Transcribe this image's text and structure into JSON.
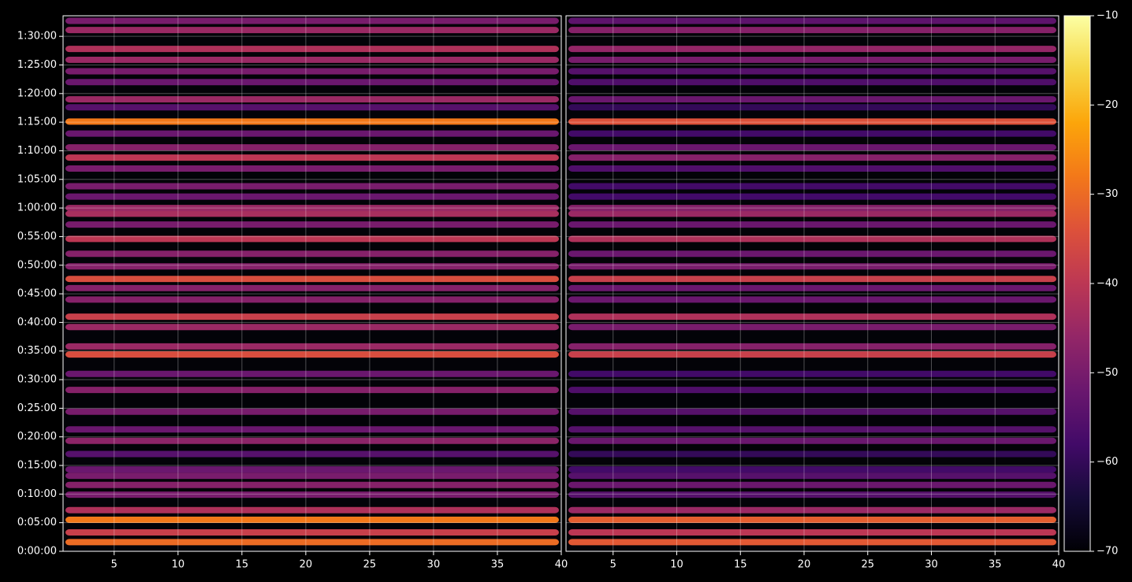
{
  "chart_data": {
    "type": "heatmap",
    "ylim": [
      0,
      93.6
    ],
    "yticks": [
      {
        "value": 0,
        "label": "0:00:00"
      },
      {
        "value": 5,
        "label": "0:05:00"
      },
      {
        "value": 10,
        "label": "0:10:00"
      },
      {
        "value": 15,
        "label": "0:15:00"
      },
      {
        "value": 20,
        "label": "0:20:00"
      },
      {
        "value": 25,
        "label": "0:25:00"
      },
      {
        "value": 30,
        "label": "0:30:00"
      },
      {
        "value": 35,
        "label": "0:35:00"
      },
      {
        "value": 40,
        "label": "0:40:00"
      },
      {
        "value": 45,
        "label": "0:45:00"
      },
      {
        "value": 50,
        "label": "0:50:00"
      },
      {
        "value": 55,
        "label": "0:55:00"
      },
      {
        "value": 60,
        "label": "1:00:00"
      },
      {
        "value": 65,
        "label": "1:05:00"
      },
      {
        "value": 70,
        "label": "1:10:00"
      },
      {
        "value": 75,
        "label": "1:15:00"
      },
      {
        "value": 80,
        "label": "1:20:00"
      },
      {
        "value": 85,
        "label": "1:25:00"
      },
      {
        "value": 90,
        "label": "1:30:00"
      }
    ],
    "y": [
      1.6,
      3.3,
      5.5,
      7.2,
      9.9,
      11.6,
      13.2,
      14.3,
      17,
      19.3,
      21.3,
      24.4,
      28.2,
      31,
      34.4,
      35.8,
      39.2,
      41,
      44,
      46,
      47.6,
      49.8,
      52,
      54.6,
      57.1,
      59,
      60,
      62,
      63.8,
      66.9,
      68.8,
      70.6,
      73,
      75.1,
      77.6,
      79,
      82,
      83.9,
      85.9,
      87.8,
      91.1,
      92.7
    ],
    "panels": [
      {
        "xlim": [
          1,
          40
        ],
        "xticks": [
          5,
          10,
          15,
          20,
          25,
          30,
          35,
          40
        ],
        "values": [
          -30,
          -38,
          -28,
          -42,
          -50,
          -48,
          -50,
          -52,
          -55,
          -47,
          -52,
          -50,
          -48,
          -52,
          -35,
          -45,
          -45,
          -38,
          -48,
          -48,
          -35,
          -48,
          -48,
          -40,
          -50,
          -43,
          -45,
          -52,
          -50,
          -50,
          -40,
          -48,
          -52,
          -28,
          -55,
          -45,
          -52,
          -50,
          -45,
          -42,
          -45,
          -50
        ]
      },
      {
        "xlim": [
          1.3,
          40
        ],
        "xticks": [
          5,
          10,
          15,
          20,
          25,
          30,
          35,
          40
        ],
        "values": [
          -33,
          -40,
          -32,
          -45,
          -55,
          -52,
          -55,
          -58,
          -60,
          -52,
          -55,
          -55,
          -56,
          -58,
          -38,
          -48,
          -50,
          -42,
          -52,
          -52,
          -38,
          -50,
          -52,
          -42,
          -52,
          -45,
          -48,
          -58,
          -58,
          -56,
          -48,
          -52,
          -58,
          -34,
          -60,
          -52,
          -56,
          -55,
          -50,
          -46,
          -48,
          -54
        ]
      }
    ],
    "clim": [
      -70,
      -10
    ],
    "cticks": [
      {
        "value": -70,
        "label": "−70"
      },
      {
        "value": -60,
        "label": "−60"
      },
      {
        "value": -50,
        "label": "−50"
      },
      {
        "value": -40,
        "label": "−40"
      },
      {
        "value": -30,
        "label": "−30"
      },
      {
        "value": -20,
        "label": "−20"
      },
      {
        "value": -10,
        "label": "−10"
      }
    ],
    "colormap": "inferno",
    "grid": true
  }
}
